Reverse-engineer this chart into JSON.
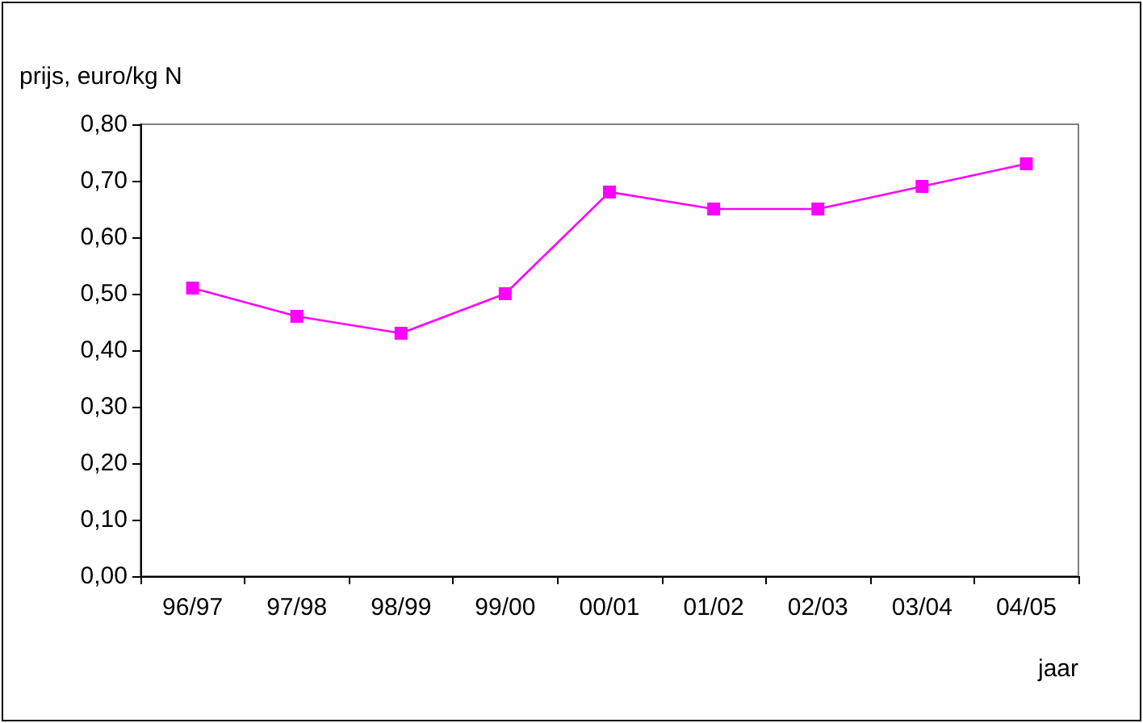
{
  "chart_data": {
    "type": "line",
    "ylabel": "prijs, euro/kg N",
    "xlabel": "jaar",
    "categories": [
      "96/97",
      "97/98",
      "98/99",
      "99/00",
      "00/01",
      "01/02",
      "02/03",
      "03/04",
      "04/05"
    ],
    "series": [
      {
        "color": "#ff00ff",
        "values": [
          0.51,
          0.46,
          0.43,
          0.5,
          0.68,
          0.65,
          0.65,
          0.69,
          0.73
        ]
      }
    ],
    "ylim": [
      0,
      0.8
    ],
    "yticks": [
      {
        "value": 0,
        "label": "0,00"
      },
      {
        "value": 0.1,
        "label": "0,10"
      },
      {
        "value": 0.2,
        "label": "0,20"
      },
      {
        "value": 0.3,
        "label": "0,30"
      },
      {
        "value": 0.4,
        "label": "0,40"
      },
      {
        "value": 0.5,
        "label": "0,50"
      },
      {
        "value": 0.6,
        "label": "0,60"
      },
      {
        "value": 0.7,
        "label": "0,70"
      },
      {
        "value": 0.8,
        "label": "0,80"
      }
    ],
    "grid": false,
    "marker": "square",
    "line_style": "solid"
  }
}
